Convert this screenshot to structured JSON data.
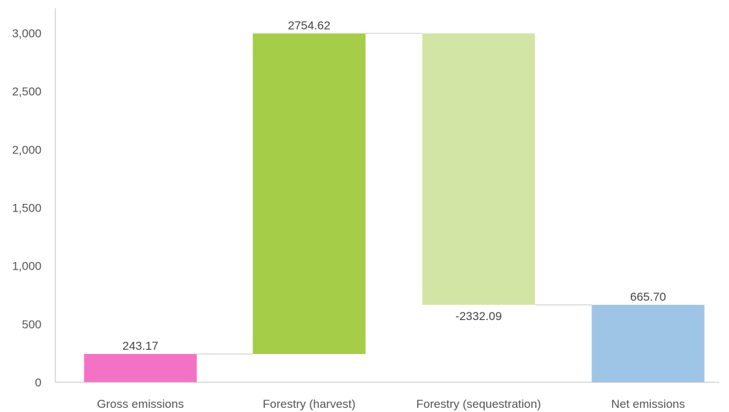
{
  "chart_data": {
    "type": "bar",
    "subtype": "waterfall",
    "title": "",
    "xlabel": "",
    "ylabel": "",
    "ylim": [
      0,
      3000
    ],
    "y_ticks": [
      0,
      500,
      1000,
      1500,
      2000,
      2500,
      3000
    ],
    "y_tick_labels": [
      "0",
      "500",
      "1,000",
      "1,500",
      "2,000",
      "2,500",
      "3,000"
    ],
    "grid": false,
    "legend": "none",
    "categories": [
      "Gross emissions",
      "Forestry (harvest)",
      "Forestry (sequestration)",
      "Net emissions"
    ],
    "values": [
      243.17,
      2754.62,
      -2332.09,
      665.7
    ],
    "bar_start": [
      0,
      243.17,
      2997.79,
      0
    ],
    "bar_end": [
      243.17,
      2997.79,
      665.7,
      665.7
    ],
    "data_labels": [
      "243.17",
      "2754.62",
      "-2332.09",
      "665.70"
    ],
    "colors": [
      "#f472c6",
      "#a5cd47",
      "#d3e5a4",
      "#9fc5e6"
    ],
    "connector_color": "#d9d9d9",
    "axis_color": "#bfbfbf"
  }
}
